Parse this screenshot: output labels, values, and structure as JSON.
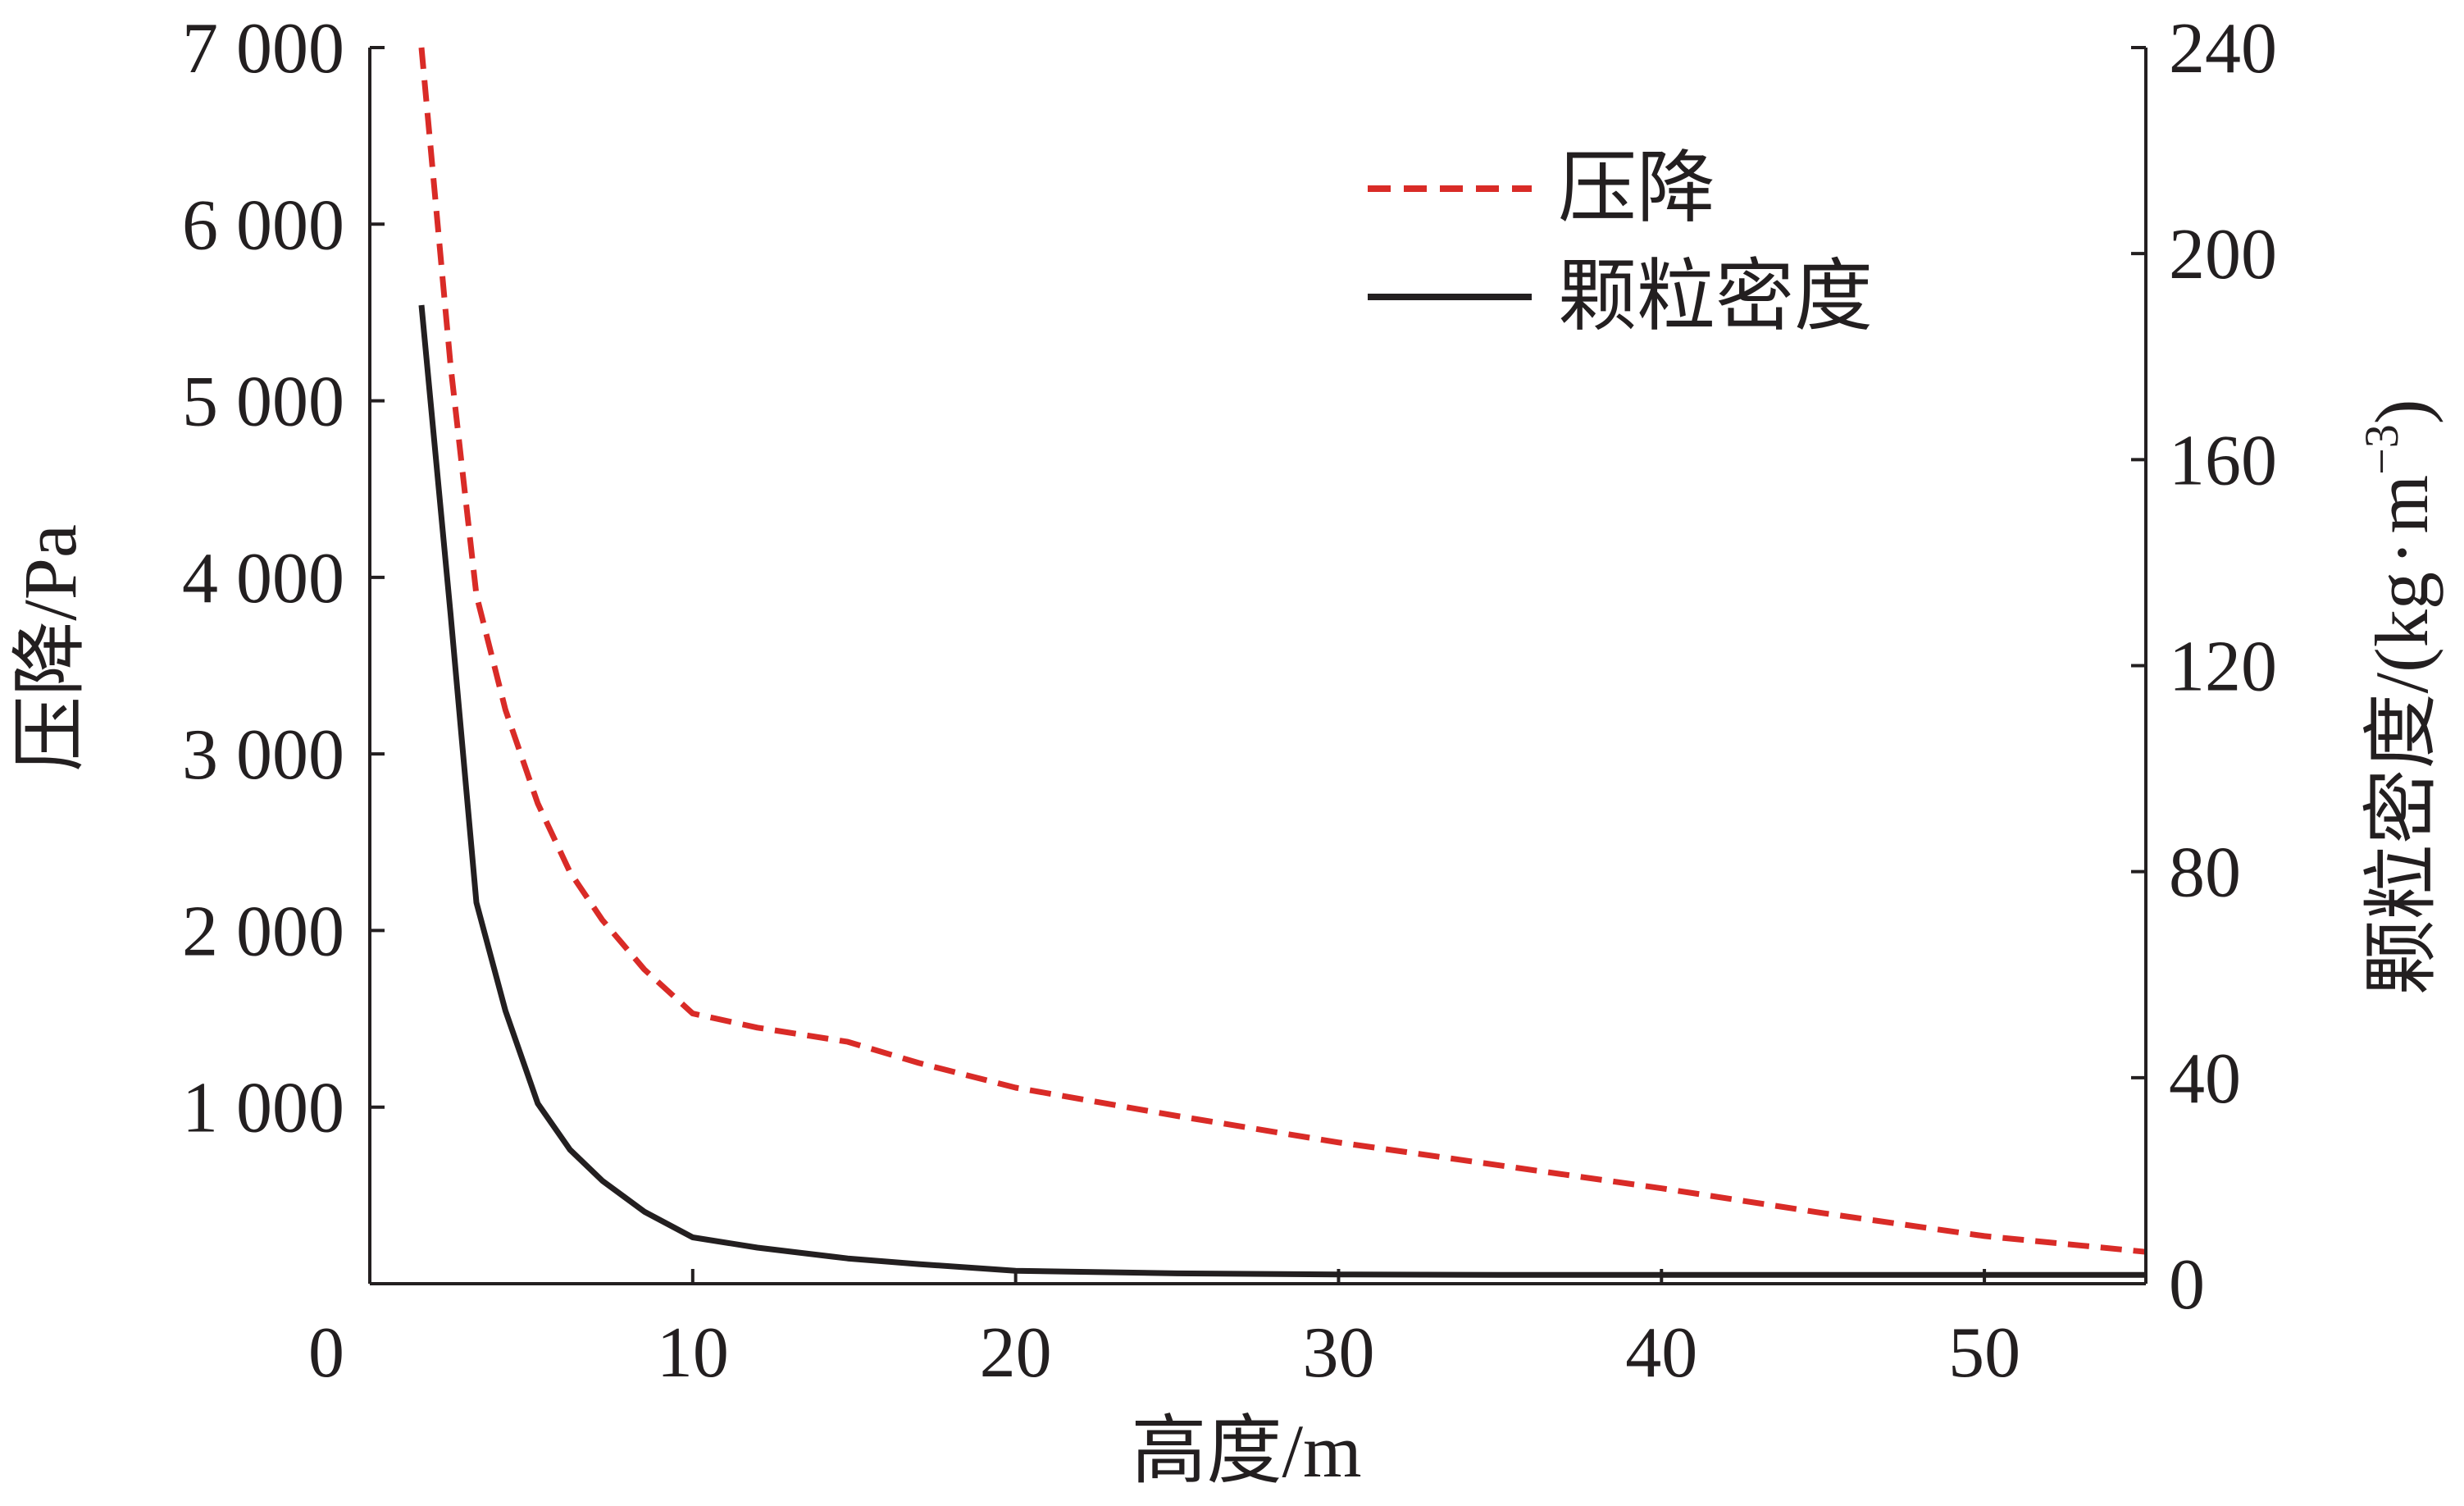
{
  "chart_data": {
    "type": "line",
    "title": "",
    "xlabel": "高度/m",
    "ylabel_left": "压降/Pa",
    "ylabel_right": "颗粒密度/(kg·m⁻³)",
    "ylabel_right_parts": {
      "main": "颗粒密度/(kg",
      "dot": "·",
      "unit": "m",
      "exp": "−3",
      "close": ")"
    },
    "xlim": [
      0,
      55
    ],
    "ylim_left": [
      0,
      7000
    ],
    "ylim_right": [
      0,
      240
    ],
    "x_ticks": [
      0,
      10,
      20,
      30,
      40,
      50
    ],
    "x_tick_labels": [
      "0",
      "10",
      "20",
      "30",
      "40",
      "50"
    ],
    "y_left_ticks": [
      1000,
      2000,
      3000,
      4000,
      5000,
      6000,
      7000
    ],
    "y_left_tick_labels": [
      "1 000",
      "2 000",
      "3 000",
      "4 000",
      "5 000",
      "6 000",
      "7 000"
    ],
    "y_right_ticks": [
      0,
      40,
      80,
      120,
      160,
      200,
      240
    ],
    "y_right_tick_labels": [
      "0",
      "40",
      "80",
      "120",
      "160",
      "200",
      "240"
    ],
    "grid": false,
    "legend_position": "top-right",
    "colors": {
      "pressure": "#d92b27",
      "density": "#231f20",
      "axis": "#231f20"
    },
    "series": [
      {
        "name": "压降",
        "axis": "left",
        "style": "dashed",
        "color": "#d92b27",
        "x": [
          1.6,
          2.5,
          3.3,
          4.2,
          5.2,
          6.2,
          7.2,
          8.5,
          10,
          12,
          14.8,
          17,
          20,
          25,
          30,
          35,
          40,
          45,
          50,
          55
        ],
        "y": [
          7000,
          5200,
          3900,
          3250,
          2720,
          2330,
          2060,
          1780,
          1530,
          1450,
          1370,
          1250,
          1110,
          950,
          800,
          670,
          540,
          400,
          270,
          180
        ]
      },
      {
        "name": "颗粒密度",
        "axis": "right",
        "style": "solid",
        "color": "#231f20",
        "x": [
          1.6,
          2.5,
          3.3,
          4.2,
          5.2,
          6.2,
          7.2,
          8.5,
          10,
          12,
          14.8,
          17,
          20,
          25,
          30,
          35,
          40,
          45,
          50,
          55
        ],
        "y": [
          190,
          130,
          74,
          53,
          35,
          26,
          20,
          14,
          9,
          7,
          4.9,
          3.8,
          2.5,
          2,
          1.8,
          1.7,
          1.7,
          1.7,
          1.7,
          1.7
        ]
      }
    ]
  }
}
